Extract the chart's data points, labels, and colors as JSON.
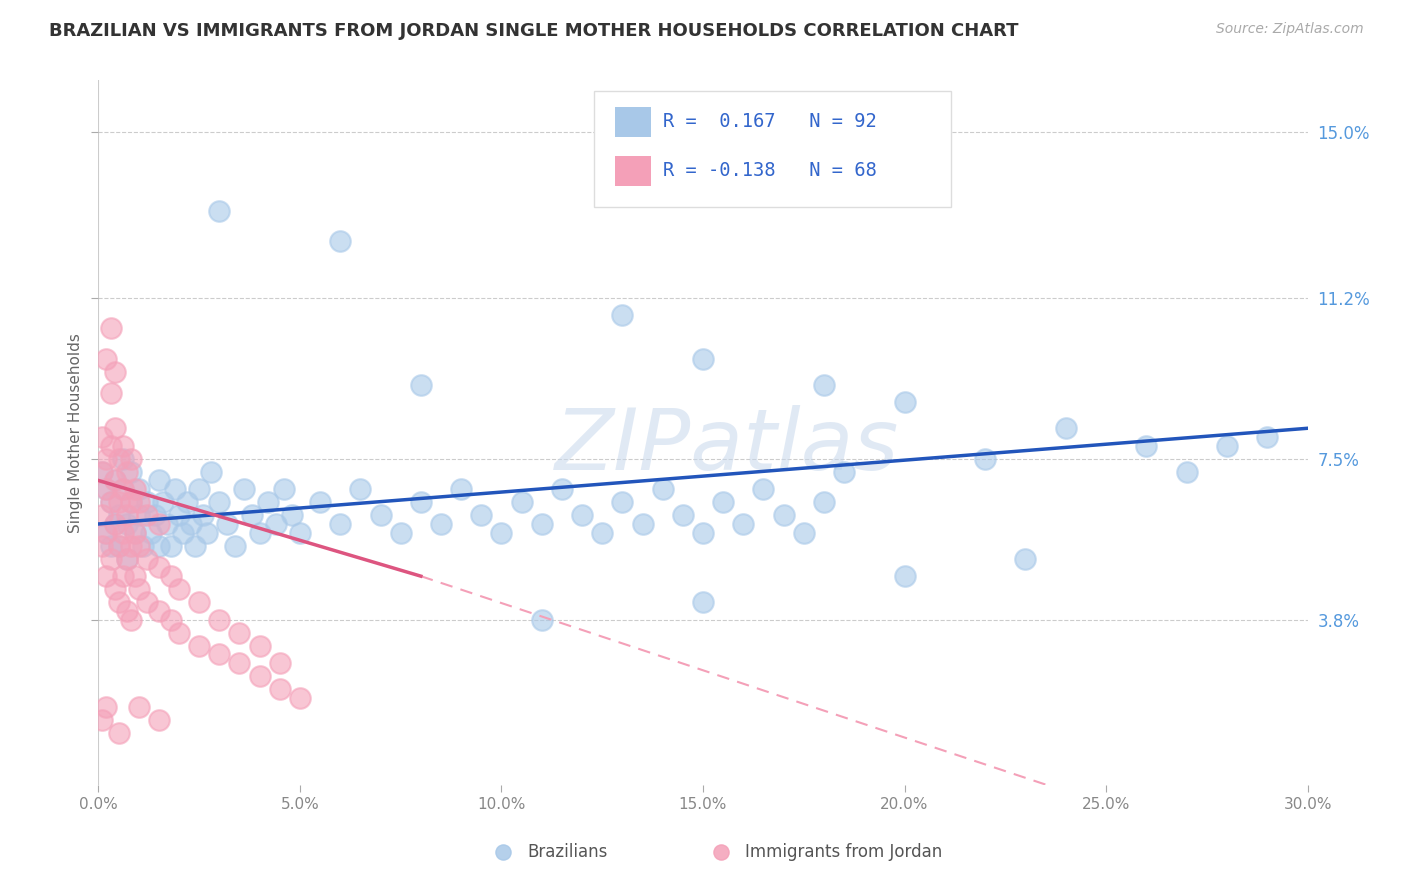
{
  "title": "BRAZILIAN VS IMMIGRANTS FROM JORDAN SINGLE MOTHER HOUSEHOLDS CORRELATION CHART",
  "source": "Source: ZipAtlas.com",
  "ylabel": "Single Mother Households",
  "xlim": [
    0.0,
    0.3
  ],
  "ylim": [
    0.0,
    0.162
  ],
  "yticks": [
    0.038,
    0.075,
    0.112,
    0.15
  ],
  "ytick_labels": [
    "3.8%",
    "7.5%",
    "11.2%",
    "15.0%"
  ],
  "xticks": [
    0.0,
    0.05,
    0.1,
    0.15,
    0.2,
    0.25,
    0.3
  ],
  "xtick_labels": [
    "0.0%",
    "5.0%",
    "10.0%",
    "15.0%",
    "20.0%",
    "25.0%",
    "30.0%"
  ],
  "color_blue": "#A8C8E8",
  "color_pink": "#F4A0B8",
  "line_blue": "#2255BB",
  "line_pink": "#DD5580",
  "line_pink_dash": "#F4A0B8",
  "watermark": "ZIPatlas",
  "brazil_scatter": [
    [
      0.001,
      0.072
    ],
    [
      0.002,
      0.068
    ],
    [
      0.002,
      0.058
    ],
    [
      0.003,
      0.065
    ],
    [
      0.003,
      0.055
    ],
    [
      0.004,
      0.06
    ],
    [
      0.004,
      0.07
    ],
    [
      0.005,
      0.062
    ],
    [
      0.005,
      0.055
    ],
    [
      0.006,
      0.068
    ],
    [
      0.006,
      0.075
    ],
    [
      0.007,
      0.06
    ],
    [
      0.007,
      0.052
    ],
    [
      0.008,
      0.065
    ],
    [
      0.008,
      0.072
    ],
    [
      0.009,
      0.058
    ],
    [
      0.01,
      0.068
    ],
    [
      0.01,
      0.062
    ],
    [
      0.011,
      0.055
    ],
    [
      0.012,
      0.065
    ],
    [
      0.013,
      0.058
    ],
    [
      0.014,
      0.062
    ],
    [
      0.015,
      0.07
    ],
    [
      0.015,
      0.055
    ],
    [
      0.016,
      0.065
    ],
    [
      0.017,
      0.06
    ],
    [
      0.018,
      0.055
    ],
    [
      0.019,
      0.068
    ],
    [
      0.02,
      0.062
    ],
    [
      0.021,
      0.058
    ],
    [
      0.022,
      0.065
    ],
    [
      0.023,
      0.06
    ],
    [
      0.024,
      0.055
    ],
    [
      0.025,
      0.068
    ],
    [
      0.026,
      0.062
    ],
    [
      0.027,
      0.058
    ],
    [
      0.028,
      0.072
    ],
    [
      0.03,
      0.065
    ],
    [
      0.032,
      0.06
    ],
    [
      0.034,
      0.055
    ],
    [
      0.036,
      0.068
    ],
    [
      0.038,
      0.062
    ],
    [
      0.04,
      0.058
    ],
    [
      0.042,
      0.065
    ],
    [
      0.044,
      0.06
    ],
    [
      0.046,
      0.068
    ],
    [
      0.048,
      0.062
    ],
    [
      0.05,
      0.058
    ],
    [
      0.055,
      0.065
    ],
    [
      0.06,
      0.06
    ],
    [
      0.065,
      0.068
    ],
    [
      0.07,
      0.062
    ],
    [
      0.075,
      0.058
    ],
    [
      0.08,
      0.065
    ],
    [
      0.085,
      0.06
    ],
    [
      0.09,
      0.068
    ],
    [
      0.095,
      0.062
    ],
    [
      0.1,
      0.058
    ],
    [
      0.105,
      0.065
    ],
    [
      0.11,
      0.06
    ],
    [
      0.115,
      0.068
    ],
    [
      0.12,
      0.062
    ],
    [
      0.125,
      0.058
    ],
    [
      0.13,
      0.065
    ],
    [
      0.135,
      0.06
    ],
    [
      0.14,
      0.068
    ],
    [
      0.145,
      0.062
    ],
    [
      0.15,
      0.058
    ],
    [
      0.155,
      0.065
    ],
    [
      0.16,
      0.06
    ],
    [
      0.165,
      0.068
    ],
    [
      0.17,
      0.062
    ],
    [
      0.175,
      0.058
    ],
    [
      0.18,
      0.065
    ],
    [
      0.185,
      0.072
    ],
    [
      0.06,
      0.125
    ],
    [
      0.03,
      0.132
    ],
    [
      0.13,
      0.108
    ],
    [
      0.08,
      0.092
    ],
    [
      0.15,
      0.098
    ],
    [
      0.18,
      0.092
    ],
    [
      0.2,
      0.088
    ],
    [
      0.22,
      0.075
    ],
    [
      0.24,
      0.082
    ],
    [
      0.26,
      0.078
    ],
    [
      0.15,
      0.042
    ],
    [
      0.11,
      0.038
    ],
    [
      0.2,
      0.048
    ],
    [
      0.23,
      0.052
    ],
    [
      0.27,
      0.072
    ],
    [
      0.28,
      0.078
    ],
    [
      0.29,
      0.08
    ]
  ],
  "jordan_scatter": [
    [
      0.001,
      0.062
    ],
    [
      0.001,
      0.072
    ],
    [
      0.001,
      0.055
    ],
    [
      0.001,
      0.08
    ],
    [
      0.002,
      0.068
    ],
    [
      0.002,
      0.058
    ],
    [
      0.002,
      0.075
    ],
    [
      0.002,
      0.048
    ],
    [
      0.003,
      0.065
    ],
    [
      0.003,
      0.078
    ],
    [
      0.003,
      0.052
    ],
    [
      0.003,
      0.09
    ],
    [
      0.004,
      0.06
    ],
    [
      0.004,
      0.07
    ],
    [
      0.004,
      0.045
    ],
    [
      0.004,
      0.082
    ],
    [
      0.005,
      0.055
    ],
    [
      0.005,
      0.065
    ],
    [
      0.005,
      0.075
    ],
    [
      0.005,
      0.042
    ],
    [
      0.006,
      0.058
    ],
    [
      0.006,
      0.068
    ],
    [
      0.006,
      0.048
    ],
    [
      0.006,
      0.078
    ],
    [
      0.007,
      0.052
    ],
    [
      0.007,
      0.062
    ],
    [
      0.007,
      0.072
    ],
    [
      0.007,
      0.04
    ],
    [
      0.008,
      0.055
    ],
    [
      0.008,
      0.065
    ],
    [
      0.008,
      0.075
    ],
    [
      0.008,
      0.038
    ],
    [
      0.009,
      0.048
    ],
    [
      0.009,
      0.058
    ],
    [
      0.009,
      0.068
    ],
    [
      0.01,
      0.045
    ],
    [
      0.01,
      0.055
    ],
    [
      0.01,
      0.065
    ],
    [
      0.012,
      0.042
    ],
    [
      0.012,
      0.052
    ],
    [
      0.012,
      0.062
    ],
    [
      0.015,
      0.04
    ],
    [
      0.015,
      0.05
    ],
    [
      0.015,
      0.06
    ],
    [
      0.018,
      0.038
    ],
    [
      0.018,
      0.048
    ],
    [
      0.02,
      0.035
    ],
    [
      0.02,
      0.045
    ],
    [
      0.025,
      0.032
    ],
    [
      0.025,
      0.042
    ],
    [
      0.03,
      0.03
    ],
    [
      0.03,
      0.038
    ],
    [
      0.035,
      0.028
    ],
    [
      0.035,
      0.035
    ],
    [
      0.04,
      0.025
    ],
    [
      0.04,
      0.032
    ],
    [
      0.045,
      0.022
    ],
    [
      0.045,
      0.028
    ],
    [
      0.05,
      0.02
    ],
    [
      0.002,
      0.098
    ],
    [
      0.003,
      0.105
    ],
    [
      0.004,
      0.095
    ],
    [
      0.001,
      0.015
    ],
    [
      0.002,
      0.018
    ],
    [
      0.005,
      0.012
    ],
    [
      0.01,
      0.018
    ],
    [
      0.015,
      0.015
    ]
  ],
  "brazil_line": [
    [
      0.0,
      0.06
    ],
    [
      0.3,
      0.082
    ]
  ],
  "jordan_line_solid": [
    [
      0.0,
      0.07
    ],
    [
      0.08,
      0.048
    ]
  ],
  "jordan_line_dash": [
    [
      0.08,
      0.048
    ],
    [
      0.3,
      -0.02
    ]
  ]
}
